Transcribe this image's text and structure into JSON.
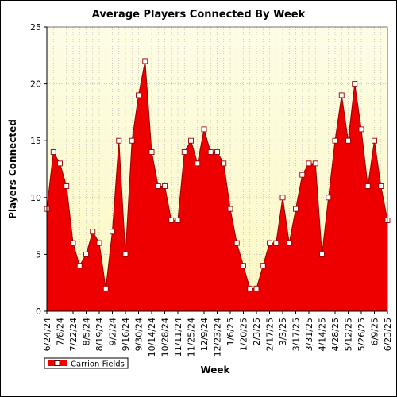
{
  "chart_data": {
    "type": "area",
    "title": "Average Players Connected By Week",
    "xlabel": "Week",
    "ylabel": "Players Connected",
    "ylim": [
      0,
      25
    ],
    "yticks": [
      0,
      5,
      10,
      15,
      20,
      25
    ],
    "grid": true,
    "legend_position": "bottom-left",
    "x": [
      "6/24/24",
      "7/1/24",
      "7/8/24",
      "7/15/24",
      "7/22/24",
      "7/29/24",
      "8/5/24",
      "8/12/24",
      "8/19/24",
      "8/26/24",
      "9/2/24",
      "9/9/24",
      "9/16/24",
      "9/23/24",
      "9/30/24",
      "10/7/24",
      "10/14/24",
      "10/21/24",
      "10/28/24",
      "11/4/24",
      "11/11/24",
      "11/18/24",
      "11/25/24",
      "12/2/24",
      "12/9/24",
      "12/16/24",
      "12/23/24",
      "12/30/24",
      "1/6/25",
      "1/13/25",
      "1/20/25",
      "1/27/25",
      "2/3/25",
      "2/10/25",
      "2/17/25",
      "2/24/25",
      "3/3/25",
      "3/10/25",
      "3/17/25",
      "3/24/25",
      "3/31/25",
      "4/7/25",
      "4/14/25",
      "4/21/25",
      "4/28/25",
      "5/5/25",
      "5/12/25",
      "5/19/25",
      "5/26/25",
      "6/2/25",
      "6/9/25",
      "6/16/25",
      "6/23/25"
    ],
    "x_tick_labels": [
      "6/24/24",
      "7/8/24",
      "7/22/24",
      "8/5/24",
      "8/19/24",
      "9/2/24",
      "9/16/24",
      "9/30/24",
      "10/14/24",
      "10/28/24",
      "11/11/24",
      "11/25/24",
      "12/9/24",
      "12/23/24",
      "1/6/25",
      "1/20/25",
      "2/3/25",
      "2/17/25",
      "3/3/25",
      "3/17/25",
      "3/31/25",
      "4/14/25",
      "4/28/25",
      "5/12/25",
      "5/26/25",
      "6/9/25",
      "6/23/25"
    ],
    "series": [
      {
        "name": "Carrion Fields",
        "color": "#ee0000",
        "values": [
          9,
          14,
          13,
          11,
          6,
          4,
          5,
          7,
          6,
          2,
          7,
          15,
          5,
          15,
          19,
          22,
          14,
          11,
          11,
          8,
          8,
          14,
          15,
          13,
          16,
          14,
          14,
          13,
          9,
          6,
          4,
          2,
          2,
          4,
          6,
          6,
          10,
          6,
          9,
          12,
          13,
          13,
          5,
          10,
          15,
          19,
          15,
          20,
          16,
          11,
          15,
          11,
          8
        ]
      }
    ],
    "colors": {
      "plot_bg_top": "#fdfde6",
      "plot_bg_bottom": "#fbf8c2",
      "area_fill": "#ee0000",
      "line": "#990000",
      "marker_fill": "#ffffff",
      "grid": "#b8b8b8"
    }
  }
}
